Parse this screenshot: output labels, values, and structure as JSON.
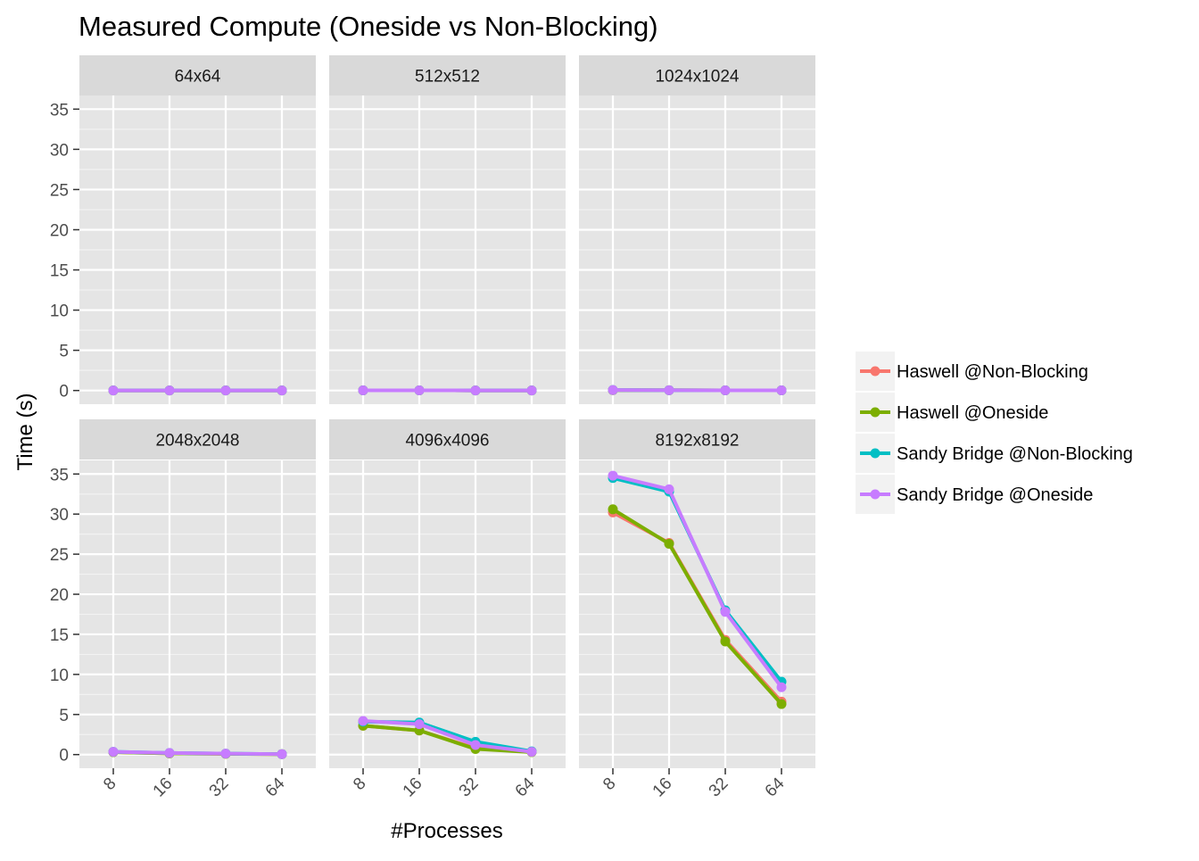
{
  "chart_data": {
    "type": "line",
    "title": "Measured Compute (Oneside vs Non-Blocking)",
    "xlabel": "#Processes",
    "ylabel": "Time (s)",
    "x_categories": [
      "8",
      "16",
      "32",
      "64"
    ],
    "y_ticks": [
      0,
      5,
      10,
      15,
      20,
      25,
      30,
      35
    ],
    "ylim": [
      -1.7,
      36.7
    ],
    "grid": true,
    "background_color": "#E5E5E5",
    "strip_color": "#D9D9D9",
    "legend": {
      "placement": "right",
      "entries": [
        {
          "name": "Haswell @Non-Blocking",
          "color": "#F8766D"
        },
        {
          "name": "Haswell @Oneside",
          "color": "#7CAE00"
        },
        {
          "name": "Sandy Bridge @Non-Blocking",
          "color": "#00BFC4"
        },
        {
          "name": "Sandy Bridge @Oneside",
          "color": "#C77CFF"
        }
      ]
    },
    "panels": [
      {
        "title": "64x64",
        "series": [
          {
            "name": "Haswell @Non-Blocking",
            "values": [
              0.01,
              0.01,
              0.01,
              0.01
            ]
          },
          {
            "name": "Haswell @Oneside",
            "values": [
              0.01,
              0.01,
              0.01,
              0.01
            ]
          },
          {
            "name": "Sandy Bridge @Non-Blocking",
            "values": [
              0.01,
              0.01,
              0.01,
              0.01
            ]
          },
          {
            "name": "Sandy Bridge @Oneside",
            "values": [
              0.01,
              0.01,
              0.01,
              0.01
            ]
          }
        ]
      },
      {
        "title": "512x512",
        "series": [
          {
            "name": "Haswell @Non-Blocking",
            "values": [
              0.02,
              0.02,
              0.01,
              0.01
            ]
          },
          {
            "name": "Haswell @Oneside",
            "values": [
              0.02,
              0.02,
              0.01,
              0.01
            ]
          },
          {
            "name": "Sandy Bridge @Non-Blocking",
            "values": [
              0.02,
              0.02,
              0.01,
              0.01
            ]
          },
          {
            "name": "Sandy Bridge @Oneside",
            "values": [
              0.02,
              0.02,
              0.01,
              0.01
            ]
          }
        ]
      },
      {
        "title": "1024x1024",
        "series": [
          {
            "name": "Haswell @Non-Blocking",
            "values": [
              0.05,
              0.03,
              0.02,
              0.02
            ]
          },
          {
            "name": "Haswell @Oneside",
            "values": [
              0.05,
              0.03,
              0.02,
              0.02
            ]
          },
          {
            "name": "Sandy Bridge @Non-Blocking",
            "values": [
              0.06,
              0.04,
              0.02,
              0.02
            ]
          },
          {
            "name": "Sandy Bridge @Oneside",
            "values": [
              0.06,
              0.04,
              0.02,
              0.02
            ]
          }
        ]
      },
      {
        "title": "2048x2048",
        "series": [
          {
            "name": "Haswell @Non-Blocking",
            "values": [
              0.3,
              0.15,
              0.1,
              0.05
            ]
          },
          {
            "name": "Haswell @Oneside",
            "values": [
              0.3,
              0.15,
              0.1,
              0.05
            ]
          },
          {
            "name": "Sandy Bridge @Non-Blocking",
            "values": [
              0.35,
              0.2,
              0.12,
              0.06
            ]
          },
          {
            "name": "Sandy Bridge @Oneside",
            "values": [
              0.35,
              0.2,
              0.12,
              0.06
            ]
          }
        ]
      },
      {
        "title": "4096x4096",
        "series": [
          {
            "name": "Haswell @Non-Blocking",
            "values": [
              3.6,
              3.0,
              0.8,
              0.35
            ]
          },
          {
            "name": "Haswell @Oneside",
            "values": [
              3.6,
              3.0,
              0.7,
              0.3
            ]
          },
          {
            "name": "Sandy Bridge @Non-Blocking",
            "values": [
              4.1,
              4.0,
              1.6,
              0.4
            ]
          },
          {
            "name": "Sandy Bridge @Oneside",
            "values": [
              4.2,
              3.8,
              1.2,
              0.35
            ]
          }
        ]
      },
      {
        "title": "8192x8192",
        "series": [
          {
            "name": "Haswell @Non-Blocking",
            "values": [
              30.2,
              26.4,
              14.3,
              6.6
            ]
          },
          {
            "name": "Haswell @Oneside",
            "values": [
              30.6,
              26.3,
              14.1,
              6.3
            ]
          },
          {
            "name": "Sandy Bridge @Non-Blocking",
            "values": [
              34.5,
              32.8,
              18.0,
              9.1
            ]
          },
          {
            "name": "Sandy Bridge @Oneside",
            "values": [
              34.8,
              33.1,
              17.8,
              8.4
            ]
          }
        ]
      }
    ]
  }
}
